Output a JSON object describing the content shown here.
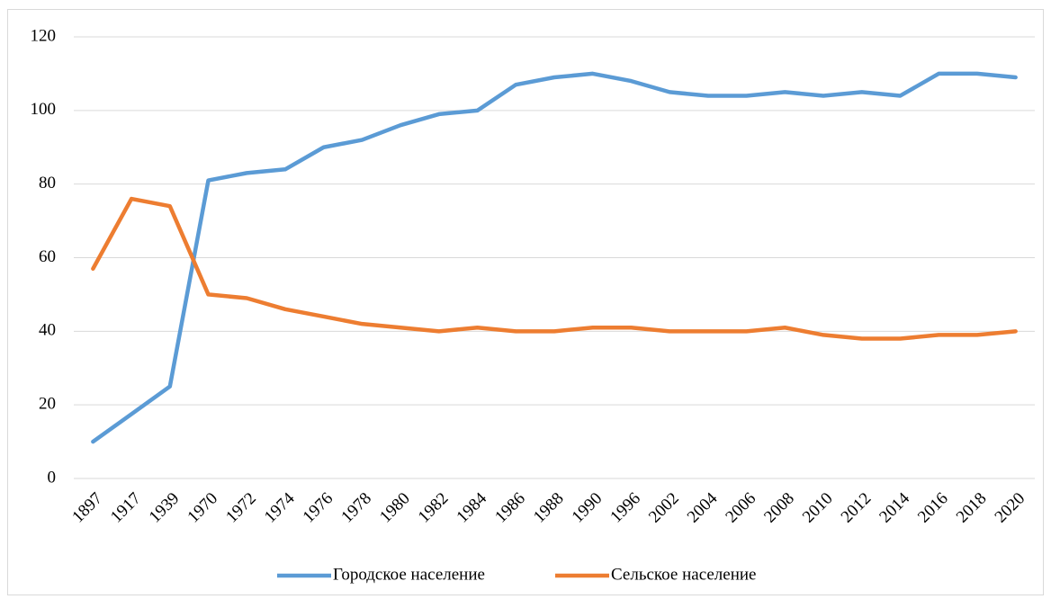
{
  "chart_data": {
    "type": "line",
    "categories": [
      "1897",
      "1917",
      "1939",
      "1970",
      "1972",
      "1974",
      "1976",
      "1978",
      "1980",
      "1982",
      "1984",
      "1986",
      "1988",
      "1990",
      "1996",
      "2002",
      "2004",
      "2006",
      "2008",
      "2010",
      "2012",
      "2014",
      "2016",
      "2018",
      "2020"
    ],
    "series": [
      {
        "name": "Городское население",
        "color": "#5b9bd5",
        "values": [
          10,
          17.5,
          25,
          81,
          83,
          84,
          90,
          92,
          96,
          99,
          100,
          107,
          109,
          110,
          108,
          105,
          104,
          104,
          105,
          104,
          105,
          104,
          110,
          110,
          109
        ]
      },
      {
        "name": "Сельское население",
        "color": "#ed7d31",
        "values": [
          57,
          76,
          74,
          50,
          49,
          46,
          44,
          42,
          41,
          40,
          41,
          40,
          40,
          41,
          41,
          40,
          40,
          40,
          41,
          39,
          38,
          38,
          39,
          39,
          40
        ]
      }
    ],
    "ylim": [
      0,
      120
    ],
    "yticks": [
      0,
      20,
      40,
      60,
      80,
      100,
      120
    ],
    "grid": true,
    "legend": "bottom"
  }
}
